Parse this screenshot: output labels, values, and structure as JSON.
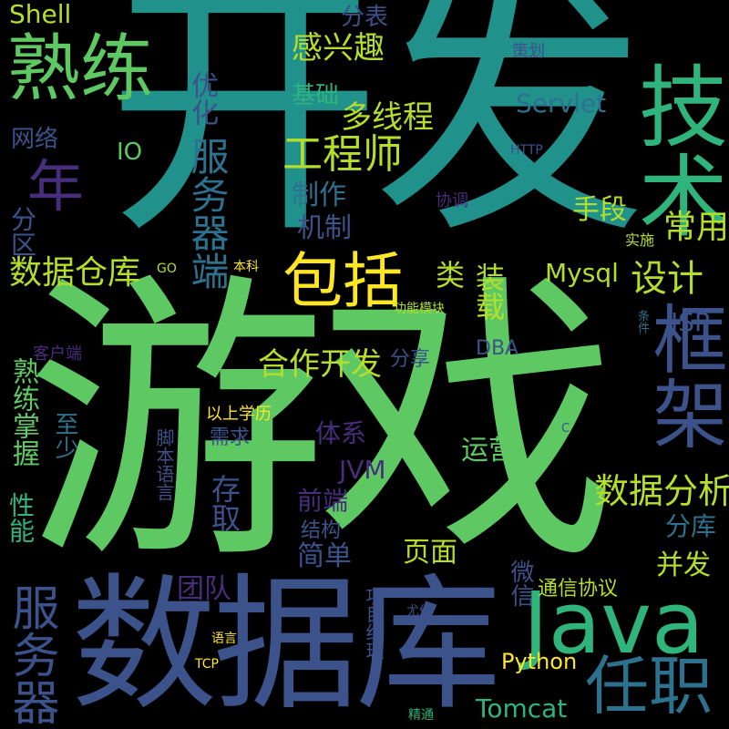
{
  "words": [
    {
      "text": "游戏",
      "color": "#5ec962"
    },
    {
      "text": "开发",
      "color": "#21918c"
    },
    {
      "text": "数据库",
      "color": "#3b528b"
    },
    {
      "text": "Java",
      "color": "#2fb47c"
    },
    {
      "text": "技术",
      "color": "#2fb47c"
    },
    {
      "text": "框架",
      "color": "#3b528b"
    },
    {
      "text": "熟练",
      "color": "#5ec962"
    },
    {
      "text": "包括",
      "color": "#fde725"
    },
    {
      "text": "任职",
      "color": "#2c728e"
    },
    {
      "text": "年",
      "color": "#472d7b"
    },
    {
      "text": "服务器端",
      "color": "#2c728e"
    },
    {
      "text": "服务器",
      "color": "#3b528b"
    },
    {
      "text": "工程师",
      "color": "#b5de2b"
    },
    {
      "text": "设计",
      "color": "#b5de2b"
    },
    {
      "text": "数据仓库",
      "color": "#b5de2b"
    },
    {
      "text": "数据分析",
      "color": "#b5de2b"
    },
    {
      "text": "合作开发",
      "color": "#b5de2b"
    },
    {
      "text": "熟练掌握",
      "color": "#5ec962"
    },
    {
      "text": "常用",
      "color": "#b5de2b"
    },
    {
      "text": "感兴趣",
      "color": "#b5de2b"
    },
    {
      "text": "多线程",
      "color": "#b5de2b"
    },
    {
      "text": "基础",
      "color": "#2fb47c"
    },
    {
      "text": "制作",
      "color": "#2c728e"
    },
    {
      "text": "机制",
      "color": "#3b528b"
    },
    {
      "text": "手段",
      "color": "#b5de2b"
    },
    {
      "text": "分表",
      "color": "#3b528b"
    },
    {
      "text": "优化",
      "color": "#3b528b"
    },
    {
      "text": "Shell",
      "color": "#b5de2b"
    },
    {
      "text": "Servlet",
      "color": "#2c728e"
    },
    {
      "text": "Mysql",
      "color": "#b5de2b"
    },
    {
      "text": "装载",
      "color": "#b5de2b"
    },
    {
      "text": "类",
      "color": "#b5de2b"
    },
    {
      "text": "JSP",
      "color": "#3b528b"
    },
    {
      "text": "分区",
      "color": "#3b528b"
    },
    {
      "text": "网络",
      "color": "#3b528b"
    },
    {
      "text": "IO",
      "color": "#5ec962"
    },
    {
      "text": "至少",
      "color": "#2c728e"
    },
    {
      "text": "体系",
      "color": "#472d7b"
    },
    {
      "text": "运营",
      "color": "#5ec962"
    },
    {
      "text": "JVM",
      "color": "#472d7b"
    },
    {
      "text": "存取",
      "color": "#3b528b"
    },
    {
      "text": "前端",
      "color": "#472d7b"
    },
    {
      "text": "性能",
      "color": "#2fb47c"
    },
    {
      "text": "结构",
      "color": "#3b528b"
    },
    {
      "text": "简单",
      "color": "#3b528b"
    },
    {
      "text": "页面",
      "color": "#b5de2b"
    },
    {
      "text": "分库",
      "color": "#2c728e"
    },
    {
      "text": "并发",
      "color": "#b5de2b"
    },
    {
      "text": "团队",
      "color": "#472d7b"
    },
    {
      "text": "微信",
      "color": "#3b528b"
    },
    {
      "text": "通信协议",
      "color": "#b5de2b"
    },
    {
      "text": "Python",
      "color": "#fde725"
    },
    {
      "text": "Tomcat",
      "color": "#2fb47c"
    },
    {
      "text": "分享",
      "color": "#3b528b"
    },
    {
      "text": "DBA",
      "color": "#3b528b"
    },
    {
      "text": "需求",
      "color": "#3b528b"
    },
    {
      "text": "以上学历",
      "color": "#fde725"
    },
    {
      "text": "客户端",
      "color": "#472d7b"
    },
    {
      "text": "脚本语言",
      "color": "#3b528b"
    },
    {
      "text": "项目经理",
      "color": "#3b528b"
    },
    {
      "text": "策划",
      "color": "#3b528b"
    },
    {
      "text": "HTTP",
      "color": "#3b528b"
    },
    {
      "text": "协调",
      "color": "#472d7b"
    },
    {
      "text": "实施",
      "color": "#b5de2b"
    },
    {
      "text": "GO",
      "color": "#b5de2b"
    },
    {
      "text": "本科",
      "color": "#fde725"
    },
    {
      "text": "功能模块",
      "color": "#b5de2b"
    },
    {
      "text": "条件",
      "color": "#2c728e"
    },
    {
      "text": "C",
      "color": "#3b528b"
    },
    {
      "text": "语言",
      "color": "#fde725"
    },
    {
      "text": "TCP",
      "color": "#fde725"
    },
    {
      "text": "尤佳",
      "color": "#3b528b"
    },
    {
      "text": "精通",
      "color": "#2fb47c"
    }
  ]
}
